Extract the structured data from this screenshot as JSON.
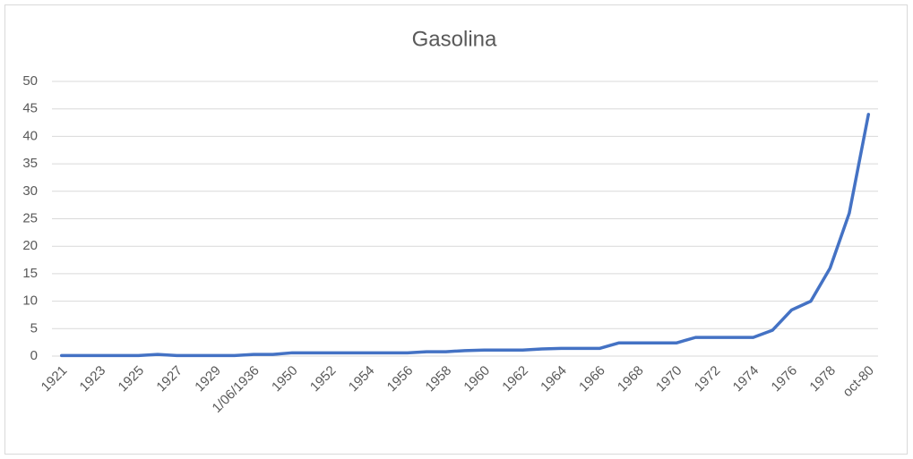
{
  "chart_data": {
    "type": "line",
    "title": "Gasolina",
    "categories": [
      "1921",
      null,
      "1923",
      null,
      "1925",
      null,
      "1927",
      null,
      "1929",
      null,
      "1/06/1936",
      null,
      "1950",
      null,
      "1952",
      null,
      "1954",
      null,
      "1956",
      null,
      "1958",
      null,
      "1960",
      null,
      "1962",
      null,
      "1964",
      null,
      "1966",
      null,
      "1968",
      null,
      "1970",
      null,
      "1972",
      null,
      "1974",
      null,
      "1976",
      null,
      "1978",
      null,
      "oct-80"
    ],
    "series": [
      {
        "name": "Gasolina",
        "color": "#4472c4",
        "values": [
          0.1,
          0.1,
          0.1,
          0.1,
          0.1,
          0.3,
          0.1,
          0.1,
          0.1,
          0.1,
          0.3,
          0.3,
          0.6,
          0.6,
          0.6,
          0.6,
          0.6,
          0.6,
          0.6,
          0.8,
          0.8,
          1.0,
          1.1,
          1.1,
          1.1,
          1.3,
          1.4,
          1.4,
          1.4,
          2.4,
          2.4,
          2.4,
          2.4,
          3.4,
          3.4,
          3.4,
          3.4,
          4.7,
          8.4,
          10,
          16,
          26,
          44
        ]
      }
    ],
    "ylim": [
      0,
      50
    ],
    "yticks": [
      0,
      5,
      10,
      15,
      20,
      25,
      30,
      35,
      40,
      45,
      50
    ],
    "grid": true
  }
}
